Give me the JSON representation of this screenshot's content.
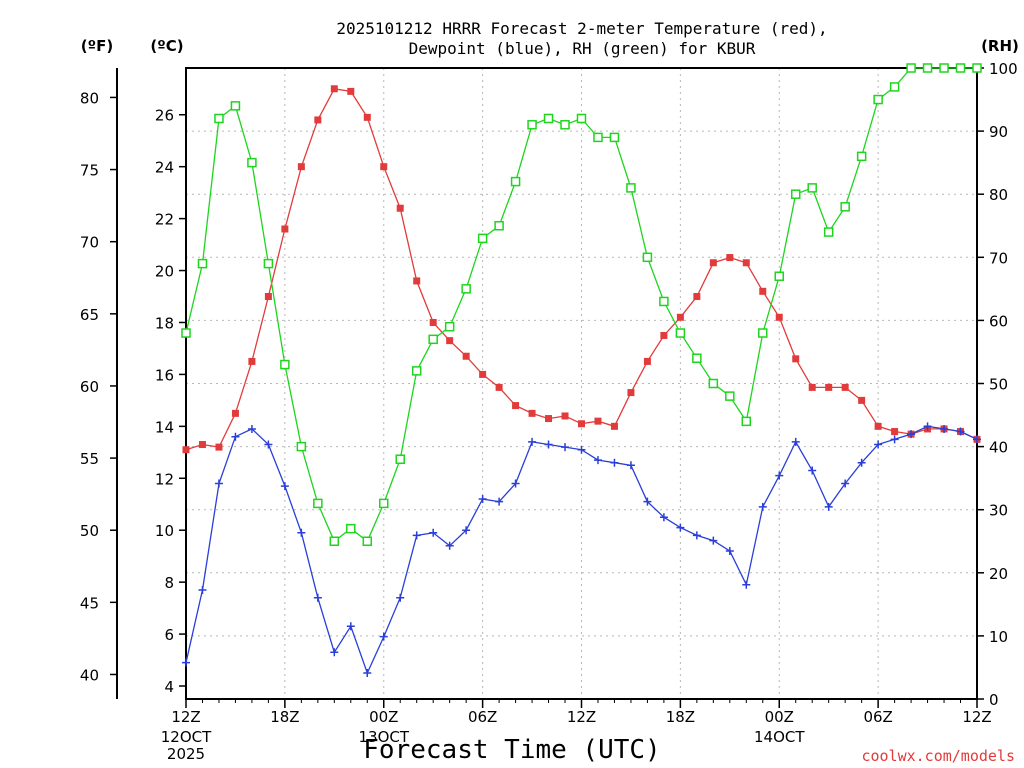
{
  "title_line1": "2025101212 HRRR Forecast 2-meter Temperature (red),",
  "title_line2": "Dewpoint (blue), RH (green) for KBUR",
  "unit_f": "(ºF)",
  "unit_c": "(ºC)",
  "unit_rh": "(RH)",
  "credit": "coolwx.com/models",
  "colors": {
    "temperature": "#e23b3b",
    "dewpoint": "#2a3fd8",
    "rh": "#1ed51e"
  },
  "chart_data": {
    "type": "line",
    "title": "2025101212 HRRR Forecast 2-meter Temperature (red), Dewpoint (blue), RH (green) for KBUR",
    "xlabel": "Forecast Time (UTC)",
    "x_tick_labels": [
      "12Z",
      "18Z",
      "00Z",
      "06Z",
      "12Z",
      "18Z",
      "00Z",
      "06Z",
      "12Z"
    ],
    "x_date_labels": [
      {
        "at_hour": 0,
        "lines": [
          "12OCT",
          "2025"
        ]
      },
      {
        "at_hour": 12,
        "lines": [
          "13OCT"
        ]
      },
      {
        "at_hour": 36,
        "lines": [
          "14OCT"
        ]
      }
    ],
    "x_hours": [
      0,
      1,
      2,
      3,
      4,
      5,
      6,
      7,
      8,
      9,
      10,
      11,
      12,
      13,
      14,
      15,
      16,
      17,
      18,
      19,
      20,
      21,
      22,
      23,
      24,
      25,
      26,
      27,
      28,
      29,
      30,
      31,
      32,
      33,
      34,
      35,
      36,
      37,
      38,
      39,
      40,
      41,
      42,
      43,
      44,
      45,
      46,
      47,
      48
    ],
    "xlim": [
      0,
      48
    ],
    "y_left_c": {
      "label": "(ºC)",
      "ticks": [
        4,
        6,
        8,
        10,
        12,
        14,
        16,
        18,
        20,
        22,
        24,
        26
      ],
      "lim": [
        3.5,
        27.8
      ]
    },
    "y_left_f": {
      "label": "(ºF)",
      "ticks": [
        40,
        45,
        50,
        55,
        60,
        65,
        70,
        75,
        80
      ]
    },
    "y_right_rh": {
      "label": "(RH)",
      "ticks": [
        0,
        10,
        20,
        30,
        40,
        50,
        60,
        70,
        80,
        90,
        100
      ],
      "lim": [
        0,
        100
      ]
    },
    "grid": true,
    "series": [
      {
        "name": "Temperature",
        "units": "C",
        "values": [
          13.1,
          13.3,
          13.2,
          14.5,
          16.5,
          19.0,
          21.6,
          24.0,
          25.8,
          27.0,
          26.9,
          25.9,
          24.0,
          22.4,
          19.6,
          18.0,
          17.3,
          16.7,
          16.0,
          15.5,
          14.8,
          14.5,
          14.3,
          14.4,
          14.1,
          14.2,
          14.0,
          15.3,
          16.5,
          17.5,
          18.2,
          19.0,
          20.3,
          20.5,
          20.3,
          19.2,
          18.2,
          16.6,
          15.5,
          15.5,
          15.5,
          15.0,
          14.0,
          13.8,
          13.7,
          13.9,
          13.9,
          13.8,
          13.5
        ]
      },
      {
        "name": "Dewpoint",
        "units": "C",
        "values": [
          4.9,
          7.7,
          11.8,
          13.6,
          13.9,
          13.3,
          11.7,
          9.9,
          7.4,
          5.3,
          6.3,
          4.5,
          5.9,
          7.4,
          9.8,
          9.9,
          9.4,
          10.0,
          11.2,
          11.1,
          11.8,
          13.4,
          13.3,
          13.2,
          13.1,
          12.7,
          12.6,
          12.5,
          11.1,
          10.5,
          10.1,
          9.8,
          9.6,
          9.2,
          7.9,
          10.9,
          12.1,
          13.4,
          12.3,
          10.9,
          11.8,
          12.6,
          13.3,
          13.5,
          13.7,
          14.0,
          13.9,
          13.8,
          13.5
        ]
      },
      {
        "name": "RH",
        "units": "%",
        "values": [
          58,
          69,
          92,
          94,
          85,
          69,
          53,
          40,
          31,
          25,
          27,
          25,
          31,
          38,
          52,
          57,
          59,
          65,
          73,
          75,
          82,
          91,
          92,
          91,
          92,
          89,
          89,
          81,
          70,
          63,
          58,
          54,
          50,
          48,
          44,
          58,
          67,
          80,
          81,
          74,
          78,
          86,
          95,
          97,
          100,
          100,
          100,
          100,
          100
        ]
      }
    ]
  }
}
